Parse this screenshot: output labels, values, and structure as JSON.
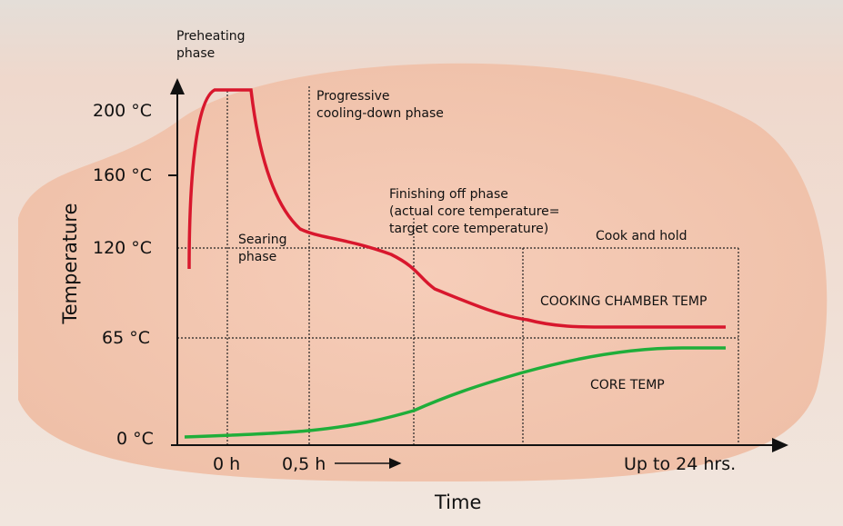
{
  "axes": {
    "y_title": "Temperature",
    "x_title": "Time",
    "y_labels": [
      "200 °C",
      "160 °C",
      "120 °C",
      "65 °C",
      "0 °C"
    ],
    "x_labels": [
      "0 h",
      "0,5 h",
      "Up to 24 hrs."
    ]
  },
  "phases": {
    "preheating": [
      "Preheating",
      "phase"
    ],
    "searing": [
      "Searing",
      "phase"
    ],
    "cooling": [
      "Progressive",
      "cooling-down phase"
    ],
    "finishing": [
      "Finishing off phase",
      "(actual core temperature=",
      "target core temperature)"
    ],
    "hold": [
      "Cook and hold"
    ]
  },
  "curves": {
    "chamber": "COOKING CHAMBER TEMP",
    "core": "CORE TEMP"
  }
}
